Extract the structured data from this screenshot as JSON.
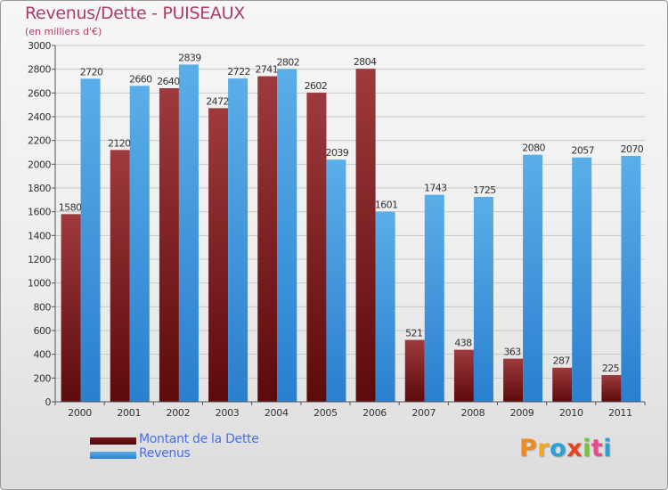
{
  "title": "Revenus/Dette - PUISEAUX",
  "subtitle": "(en milliers d'€)",
  "legend": {
    "debt_label": "Montant de la Dette",
    "revenue_label": "Revenus"
  },
  "logo": {
    "text": "Proxiti",
    "colors": [
      "#f08c1e",
      "#f0a81e",
      "#2aa0d8",
      "#e8421e",
      "#7ac143",
      "#e84b8a",
      "#2aa0d8"
    ]
  },
  "colors": {
    "debt_dark": "#5c0a0a",
    "debt_light": "#9e3a3e",
    "revenue_dark": "#2a7fcf",
    "revenue_light": "#5aaee8",
    "grid": "#c8c8c8",
    "label": "#333333"
  },
  "chart_data": {
    "type": "bar",
    "title": "Revenus/Dette - PUISEAUX",
    "subtitle": "(en milliers d'€)",
    "categories": [
      "2000",
      "2001",
      "2002",
      "2003",
      "2004",
      "2005",
      "2006",
      "2007",
      "2008",
      "2009",
      "2010",
      "2011"
    ],
    "series": [
      {
        "name": "Montant de la Dette",
        "values": [
          1580,
          2120,
          2640,
          2472,
          2741,
          2602,
          2804,
          521,
          438,
          363,
          287,
          225
        ]
      },
      {
        "name": "Revenus",
        "values": [
          2720,
          2660,
          2839,
          2722,
          2802,
          2039,
          1601,
          1743,
          1725,
          2080,
          2057,
          2070
        ]
      }
    ],
    "show_labels": [
      [
        true,
        true,
        true,
        true,
        true,
        true,
        true,
        true,
        true,
        true,
        true,
        true
      ],
      [
        true,
        true,
        true,
        true,
        true,
        true,
        true,
        true,
        true,
        true,
        true,
        true
      ]
    ],
    "ylim": [
      0,
      3000
    ],
    "yticks": [
      0,
      200,
      400,
      600,
      800,
      1000,
      1200,
      1400,
      1600,
      1800,
      2000,
      2200,
      2400,
      2600,
      2800,
      3000
    ],
    "grid": true,
    "legend_position": "bottom-left"
  }
}
